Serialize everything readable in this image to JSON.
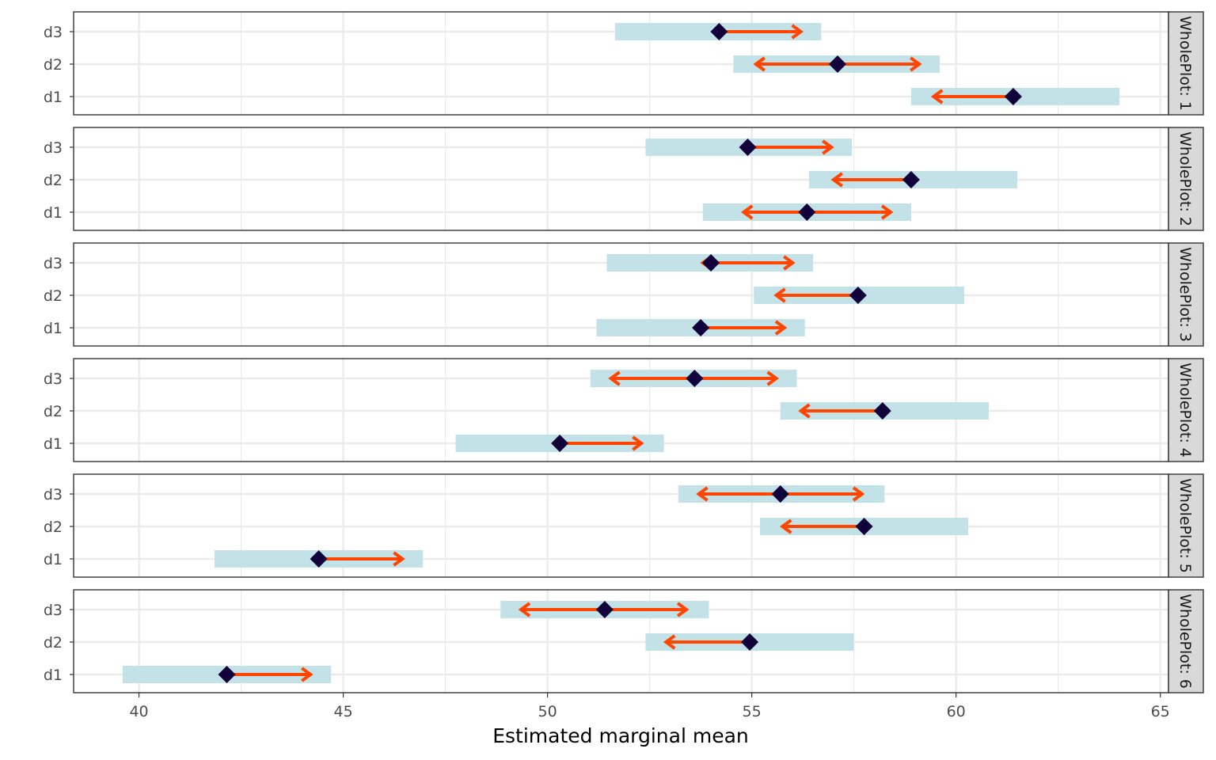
{
  "chart_data": {
    "type": "emmeans-interval-plot",
    "title": "",
    "xlabel": "Estimated marginal mean",
    "ylabel": "",
    "xlim": [
      38.4,
      65.2
    ],
    "x_ticks": [
      40,
      45,
      50,
      55,
      60,
      65
    ],
    "x_tick_labels": [
      "40",
      "45",
      "50",
      "55",
      "60",
      "65"
    ],
    "categories": [
      "d3",
      "d2",
      "d1"
    ],
    "facet_prefix": "WholePlot: ",
    "colors": {
      "ci_band": "#c2e2e8",
      "arrow": "#ff4500",
      "point": "#12003a",
      "strip_bg": "#d9d9d9",
      "grid": "#ebebeb",
      "panel_border": "#333333"
    },
    "facets": [
      {
        "label": "WholePlot: 1",
        "rows": [
          {
            "level": "d3",
            "emmean": 54.2,
            "lower": 51.65,
            "upper": 56.7,
            "arrow_left": 54.2,
            "arrow_right": 56.2
          },
          {
            "level": "d2",
            "emmean": 57.1,
            "lower": 54.55,
            "upper": 59.6,
            "arrow_left": 55.1,
            "arrow_right": 59.1
          },
          {
            "level": "d1",
            "emmean": 61.4,
            "lower": 58.9,
            "upper": 64.0,
            "arrow_left": 59.45,
            "arrow_right": 61.4
          }
        ]
      },
      {
        "label": "WholePlot: 2",
        "rows": [
          {
            "level": "d3",
            "emmean": 54.9,
            "lower": 52.4,
            "upper": 57.45,
            "arrow_left": 54.9,
            "arrow_right": 56.95
          },
          {
            "level": "d2",
            "emmean": 58.9,
            "lower": 56.4,
            "upper": 61.5,
            "arrow_left": 57.0,
            "arrow_right": 58.9
          },
          {
            "level": "d1",
            "emmean": 56.35,
            "lower": 53.8,
            "upper": 58.9,
            "arrow_left": 54.8,
            "arrow_right": 58.4
          }
        ]
      },
      {
        "label": "WholePlot: 3",
        "rows": [
          {
            "level": "d3",
            "emmean": 54.0,
            "lower": 51.45,
            "upper": 56.5,
            "arrow_left": 53.8,
            "arrow_right": 56.0
          },
          {
            "level": "d2",
            "emmean": 57.6,
            "lower": 55.05,
            "upper": 60.2,
            "arrow_left": 55.6,
            "arrow_right": 57.6
          },
          {
            "level": "d1",
            "emmean": 53.75,
            "lower": 51.2,
            "upper": 56.3,
            "arrow_left": 53.75,
            "arrow_right": 55.8
          }
        ]
      },
      {
        "label": "WholePlot: 4",
        "rows": [
          {
            "level": "d3",
            "emmean": 53.6,
            "lower": 51.05,
            "upper": 56.1,
            "arrow_left": 51.55,
            "arrow_right": 55.6
          },
          {
            "level": "d2",
            "emmean": 58.2,
            "lower": 55.7,
            "upper": 60.8,
            "arrow_left": 56.2,
            "arrow_right": 58.2
          },
          {
            "level": "d1",
            "emmean": 50.3,
            "lower": 47.75,
            "upper": 52.85,
            "arrow_left": 50.3,
            "arrow_right": 52.3
          }
        ]
      },
      {
        "label": "WholePlot: 5",
        "rows": [
          {
            "level": "d3",
            "emmean": 55.7,
            "lower": 53.2,
            "upper": 58.25,
            "arrow_left": 53.7,
            "arrow_right": 57.7
          },
          {
            "level": "d2",
            "emmean": 57.75,
            "lower": 55.2,
            "upper": 60.3,
            "arrow_left": 55.75,
            "arrow_right": 57.75
          },
          {
            "level": "d1",
            "emmean": 44.4,
            "lower": 41.85,
            "upper": 46.95,
            "arrow_left": 44.4,
            "arrow_right": 46.45
          }
        ]
      },
      {
        "label": "WholePlot: 6",
        "rows": [
          {
            "level": "d3",
            "emmean": 51.4,
            "lower": 48.85,
            "upper": 53.95,
            "arrow_left": 49.35,
            "arrow_right": 53.4
          },
          {
            "level": "d2",
            "emmean": 54.95,
            "lower": 52.4,
            "upper": 57.5,
            "arrow_left": 52.9,
            "arrow_right": 54.95
          },
          {
            "level": "d1",
            "emmean": 42.15,
            "lower": 39.6,
            "upper": 44.7,
            "arrow_left": 42.15,
            "arrow_right": 44.2
          }
        ]
      }
    ]
  }
}
